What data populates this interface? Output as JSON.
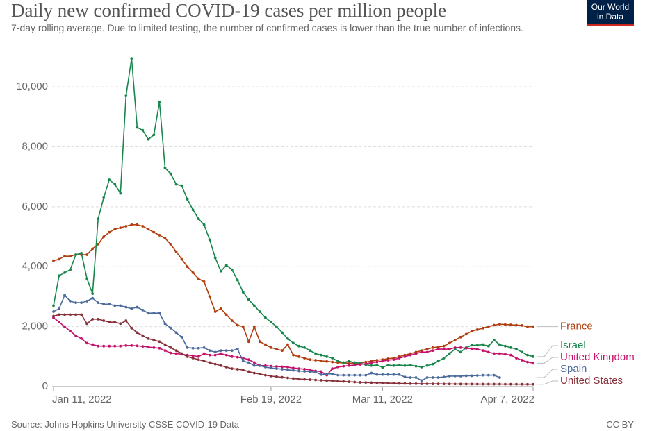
{
  "chart_data": {
    "type": "line",
    "title": "Daily new confirmed COVID-19 cases per million people",
    "subtitle": "7-day rolling average. Due to limited testing, the number of confirmed cases is lower than the true number of infections.",
    "source": "Source: Johns Hopkins University CSSE COVID-19 Data",
    "license": "CC BY",
    "logo": "Our World in Data",
    "x": [
      "2022-01-11",
      "2022-01-12",
      "2022-01-13",
      "2022-01-14",
      "2022-01-15",
      "2022-01-16",
      "2022-01-17",
      "2022-01-18",
      "2022-01-19",
      "2022-01-20",
      "2022-01-21",
      "2022-01-22",
      "2022-01-23",
      "2022-01-24",
      "2022-01-25",
      "2022-01-26",
      "2022-01-27",
      "2022-01-28",
      "2022-01-29",
      "2022-01-30",
      "2022-01-31",
      "2022-02-01",
      "2022-02-02",
      "2022-02-03",
      "2022-02-04",
      "2022-02-05",
      "2022-02-06",
      "2022-02-07",
      "2022-02-08",
      "2022-02-09",
      "2022-02-10",
      "2022-02-11",
      "2022-02-12",
      "2022-02-13",
      "2022-02-14",
      "2022-02-15",
      "2022-02-16",
      "2022-02-17",
      "2022-02-18",
      "2022-02-19",
      "2022-02-20",
      "2022-02-21",
      "2022-02-22",
      "2022-02-23",
      "2022-02-24",
      "2022-02-25",
      "2022-02-26",
      "2022-02-27",
      "2022-02-28",
      "2022-03-01",
      "2022-03-02",
      "2022-03-03",
      "2022-03-04",
      "2022-03-05",
      "2022-03-06",
      "2022-03-07",
      "2022-03-08",
      "2022-03-09",
      "2022-03-10",
      "2022-03-11",
      "2022-03-12",
      "2022-03-13",
      "2022-03-14",
      "2022-03-15",
      "2022-03-16",
      "2022-03-17",
      "2022-03-18",
      "2022-03-19",
      "2022-03-20",
      "2022-03-21",
      "2022-03-22",
      "2022-03-23",
      "2022-03-24",
      "2022-03-25",
      "2022-03-26",
      "2022-03-27",
      "2022-03-28",
      "2022-03-29",
      "2022-03-30",
      "2022-03-31",
      "2022-04-01",
      "2022-04-02",
      "2022-04-03",
      "2022-04-04",
      "2022-04-05",
      "2022-04-06",
      "2022-04-07"
    ],
    "xlim": [
      "2022-01-11",
      "2022-04-07"
    ],
    "xticks": [
      {
        "value": "2022-01-11",
        "label": "Jan 11, 2022"
      },
      {
        "value": "2022-02-19",
        "label": "Feb 19, 2022"
      },
      {
        "value": "2022-03-11",
        "label": "Mar 11, 2022"
      },
      {
        "value": "2022-04-07",
        "label": "Apr 7, 2022"
      }
    ],
    "ylim": [
      0,
      11000
    ],
    "yticks": [
      0,
      {
        "value": 2000,
        "label": "2,000"
      },
      {
        "value": 4000,
        "label": "4,000"
      },
      {
        "value": 6000,
        "label": "6,000"
      },
      {
        "value": 8000,
        "label": "8,000"
      },
      {
        "value": 10000,
        "label": "10,000"
      }
    ],
    "grid": true,
    "series": [
      {
        "name": "France",
        "color": "#b13e0f",
        "values": [
          4200,
          4250,
          4350,
          4350,
          4400,
          4400,
          4400,
          4600,
          4750,
          5000,
          5150,
          5250,
          5300,
          5350,
          5400,
          5400,
          5350,
          5250,
          5150,
          5050,
          4950,
          4750,
          4500,
          4250,
          4000,
          3800,
          3600,
          3500,
          3000,
          2500,
          2600,
          2400,
          2200,
          2050,
          2000,
          1500,
          2000,
          1500,
          1400,
          1300,
          1250,
          1200,
          1400,
          1050,
          1000,
          950,
          900,
          880,
          860,
          840,
          820,
          800,
          790,
          780,
          780,
          790,
          820,
          850,
          880,
          900,
          930,
          950,
          1000,
          1050,
          1100,
          1150,
          1200,
          1250,
          1300,
          1320,
          1350,
          1450,
          1550,
          1650,
          1750,
          1850,
          1900,
          1950,
          2000,
          2050,
          2080,
          2070,
          2060,
          2050,
          2040,
          2000,
          2000
        ]
      },
      {
        "name": "Israel",
        "color": "#18864b",
        "values": [
          2700,
          3700,
          3800,
          3900,
          4400,
          4450,
          3600,
          3100,
          5600,
          6300,
          6900,
          6750,
          6450,
          9700,
          10950,
          8650,
          8550,
          8250,
          8400,
          9500,
          7300,
          7100,
          6750,
          6700,
          6250,
          5900,
          5600,
          5400,
          4900,
          4300,
          3850,
          4050,
          3900,
          3550,
          3150,
          2900,
          2700,
          2500,
          2300,
          2150,
          2000,
          1800,
          1600,
          1450,
          1350,
          1300,
          1200,
          1100,
          1050,
          1000,
          950,
          850,
          800,
          850,
          800,
          780,
          730,
          700,
          720,
          640,
          720,
          700,
          720,
          700,
          720,
          680,
          650,
          700,
          750,
          850,
          950,
          1100,
          1250,
          1150,
          1300,
          1380,
          1380,
          1400,
          1350,
          1550,
          1400,
          1350,
          1300,
          1250,
          1150,
          1050,
          1000
        ]
      },
      {
        "name": "United Kingdom",
        "color": "#c4126b",
        "values": [
          2300,
          2150,
          2000,
          1850,
          1700,
          1600,
          1450,
          1400,
          1350,
          1350,
          1350,
          1350,
          1350,
          1370,
          1370,
          1360,
          1340,
          1320,
          1300,
          1280,
          1200,
          1120,
          1100,
          1080,
          1050,
          1030,
          1000,
          1100,
          1050,
          1050,
          1100,
          1050,
          1000,
          980,
          950,
          900,
          800,
          700,
          700,
          680,
          670,
          660,
          650,
          620,
          600,
          580,
          560,
          520,
          500,
          380,
          600,
          650,
          680,
          700,
          720,
          740,
          760,
          800,
          820,
          850,
          880,
          900,
          950,
          1000,
          1050,
          1100,
          1150,
          1150,
          1200,
          1250,
          1250,
          1250,
          1300,
          1300,
          1280,
          1260,
          1250,
          1200,
          1150,
          1100,
          1100,
          1080,
          1050,
          950,
          880,
          820,
          780
        ]
      },
      {
        "name": "Spain",
        "color": "#4c6a9c",
        "values": [
          2500,
          2600,
          3050,
          2850,
          2800,
          2800,
          2850,
          2950,
          2800,
          2750,
          2750,
          2700,
          2700,
          2650,
          2600,
          2650,
          2550,
          2450,
          2450,
          2450,
          2100,
          1950,
          1800,
          1650,
          1300,
          1280,
          1280,
          1300,
          1200,
          1150,
          1200,
          1200,
          1200,
          1250,
          850,
          800,
          700,
          700,
          650,
          620,
          600,
          580,
          560,
          540,
          520,
          510,
          500,
          480,
          400,
          420,
          420,
          380,
          380,
          380,
          380,
          380,
          380,
          450,
          400,
          400,
          400,
          400,
          400,
          320,
          300,
          300,
          200,
          300,
          300,
          300,
          320,
          350,
          350,
          350,
          360,
          360,
          370,
          380,
          380,
          380,
          300,
          null,
          null,
          null,
          null,
          null,
          null
        ]
      },
      {
        "name": "United States",
        "color": "#883039",
        "values": [
          2350,
          2400,
          2400,
          2400,
          2400,
          2400,
          2100,
          2250,
          2250,
          2200,
          2150,
          2150,
          2100,
          2200,
          1950,
          1800,
          1700,
          1600,
          1550,
          1500,
          1400,
          1300,
          1200,
          1100,
          1000,
          950,
          900,
          850,
          800,
          750,
          700,
          650,
          600,
          580,
          550,
          500,
          450,
          420,
          380,
          350,
          330,
          310,
          290,
          270,
          250,
          240,
          230,
          220,
          210,
          200,
          190,
          180,
          170,
          160,
          150,
          140,
          135,
          130,
          125,
          120,
          115,
          110,
          105,
          100,
          95,
          95,
          90,
          90,
          88,
          88,
          86,
          85,
          84,
          83,
          82,
          82,
          80,
          80,
          80,
          80,
          80,
          78,
          78,
          78,
          77,
          76,
          76
        ]
      }
    ]
  }
}
